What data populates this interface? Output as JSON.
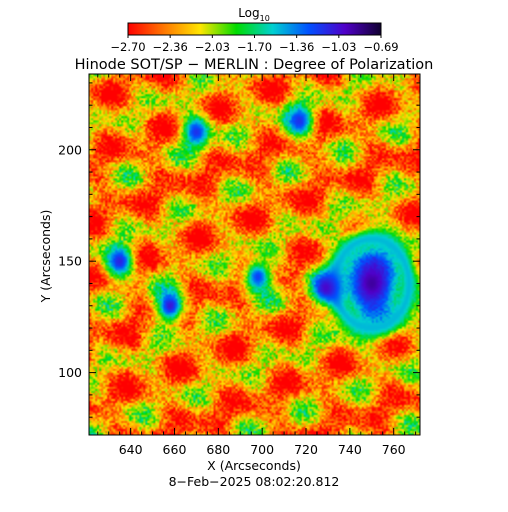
{
  "chart_data": {
    "type": "heatmap",
    "title": "Hinode SOT/SP − MERLIN : Degree of Polarization",
    "xlabel": "X (Arcseconds)",
    "ylabel": "Y (Arcseconds)",
    "timestamp": "8−Feb−2025 08:02:20.812",
    "xlim": [
      621,
      772
    ],
    "ylim": [
      72,
      234
    ],
    "x_ticks": [
      "640",
      "660",
      "680",
      "700",
      "720",
      "740",
      "760"
    ],
    "x_tick_values": [
      640,
      660,
      680,
      700,
      720,
      740,
      760
    ],
    "y_ticks": [
      "100",
      "150",
      "200"
    ],
    "y_tick_values": [
      100,
      150,
      200
    ],
    "colorbar": {
      "label_base": "Log",
      "label_sub": "10",
      "min": -2.7,
      "max": -0.69,
      "ticks": [
        "−2.70",
        "−2.36",
        "−2.03",
        "−1.70",
        "−1.36",
        "−1.03",
        "−0.69"
      ],
      "colors": [
        "#ff0000",
        "#ff7800",
        "#ffe600",
        "#00dc00",
        "#00d0d0",
        "#0050ff",
        "#5000c8",
        "#100030"
      ]
    },
    "features": [
      {
        "name": "large sunspot",
        "x": 750,
        "y": 140,
        "value": -0.9
      },
      {
        "name": "pore",
        "x": 729,
        "y": 138,
        "value": -1.0
      },
      {
        "name": "pore cluster",
        "x": 658,
        "y": 130,
        "value": -1.05
      },
      {
        "name": "pore",
        "x": 635,
        "y": 150,
        "value": -1.1
      },
      {
        "name": "pore",
        "x": 698,
        "y": 143,
        "value": -1.2
      },
      {
        "name": "pore",
        "x": 670,
        "y": 208,
        "value": -1.15
      },
      {
        "name": "pore",
        "x": 717,
        "y": 213,
        "value": -1.15
      }
    ]
  }
}
